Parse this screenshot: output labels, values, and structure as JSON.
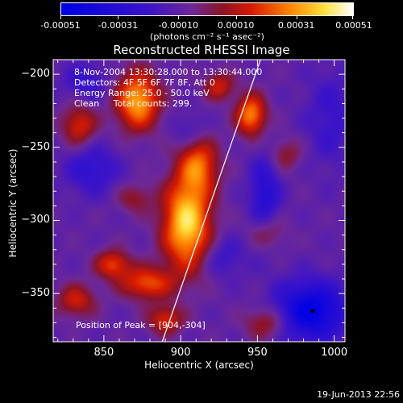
{
  "colorbar": {
    "tick_labels": [
      "-0.00051",
      "-0.00031",
      "-0.00010",
      "0.00010",
      "0.00031",
      "0.00051"
    ],
    "range": [
      -0.00051,
      0.00051
    ],
    "unit_label": "(photons cm⁻² s⁻¹ asec⁻²)"
  },
  "chart_data": {
    "type": "heatmap",
    "title": "Reconstructed RHESSI Image",
    "xlabel": "Heliocentric X (arcsec)",
    "ylabel": "Heliocentric Y (arcsec)",
    "xlim": [
      817,
      1007
    ],
    "ylim": [
      -383,
      -190
    ],
    "xticks": [
      850,
      900,
      950,
      1000
    ],
    "yticks": [
      -200,
      -250,
      -300,
      -350
    ],
    "annotations": {
      "time": "8-Nov-2004 13:30:28.000 to 13:30:44.000",
      "detectors": "Detectors: 4F 5F 6F 7F 8F, Att 0",
      "energy": "Energy Range: 25.0 - 50.0 keV",
      "clean": "Clean     Total counts: 299.",
      "peak": "Position of Peak = [904,-304]"
    },
    "peak_position": [
      904,
      -304
    ],
    "limb_line": [
      [
        888,
        -383
      ],
      [
        952,
        -190
      ]
    ],
    "marker": [
      986,
      -362
    ],
    "sources": [
      {
        "x": 904,
        "y": -302,
        "sx": 11,
        "sy": 22,
        "amp": 1.0
      },
      {
        "x": 872,
        "y": -218,
        "sx": 10,
        "sy": 14,
        "amp": 0.85
      },
      {
        "x": 912,
        "y": -262,
        "sx": 9,
        "sy": 13,
        "amp": 0.6
      },
      {
        "x": 946,
        "y": -228,
        "sx": 7,
        "sy": 10,
        "amp": 0.75
      },
      {
        "x": 925,
        "y": -208,
        "sx": 7,
        "sy": 7,
        "amp": 0.45
      },
      {
        "x": 834,
        "y": -235,
        "sx": 8,
        "sy": 10,
        "amp": 0.5
      },
      {
        "x": 856,
        "y": -330,
        "sx": 8,
        "sy": 7,
        "amp": 0.55
      },
      {
        "x": 878,
        "y": -343,
        "sx": 12,
        "sy": 8,
        "amp": 0.6
      },
      {
        "x": 890,
        "y": -368,
        "sx": 8,
        "sy": 7,
        "amp": 0.5
      },
      {
        "x": 832,
        "y": -355,
        "sx": 9,
        "sy": 8,
        "amp": 0.45
      },
      {
        "x": 956,
        "y": -308,
        "sx": 8,
        "sy": 9,
        "amp": 0.4
      },
      {
        "x": 956,
        "y": -370,
        "sx": 10,
        "sy": 8,
        "amp": 0.4
      },
      {
        "x": 968,
        "y": -255,
        "sx": 8,
        "sy": 8,
        "amp": 0.3
      },
      {
        "x": 870,
        "y": -285,
        "sx": 8,
        "sy": 7,
        "amp": 0.3
      },
      {
        "x": 985,
        "y": -362,
        "sx": 16,
        "sy": 14,
        "amp": -0.8
      },
      {
        "x": 955,
        "y": -285,
        "sx": 7,
        "sy": 22,
        "amp": -0.45
      },
      {
        "x": 842,
        "y": -265,
        "sx": 12,
        "sy": 12,
        "amp": -0.35
      },
      {
        "x": 838,
        "y": -205,
        "sx": 10,
        "sy": 9,
        "amp": -0.3
      },
      {
        "x": 998,
        "y": -230,
        "sx": 12,
        "sy": 24,
        "amp": -0.25
      },
      {
        "x": 928,
        "y": -325,
        "sx": 10,
        "sy": 10,
        "amp": -0.25
      },
      {
        "x": 905,
        "y": -238,
        "sx": 8,
        "sy": 8,
        "amp": -0.2
      }
    ],
    "bias": -0.18
  },
  "footer": {
    "timestamp": "19-Jun-2013 22:56"
  }
}
